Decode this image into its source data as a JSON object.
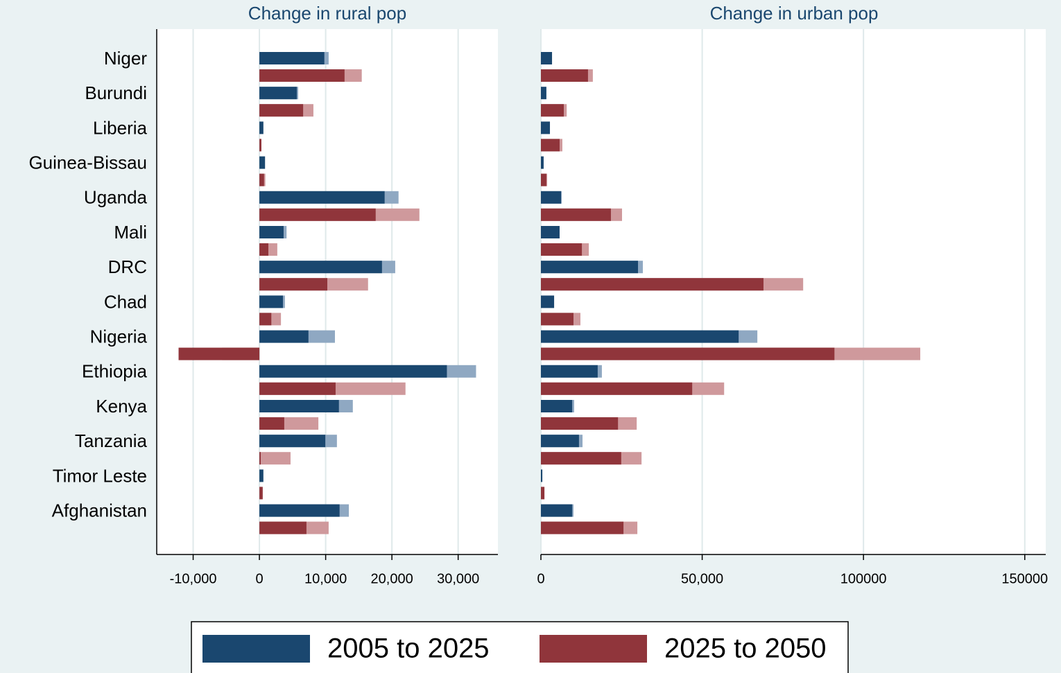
{
  "chart_data": [
    {
      "type": "bar",
      "title": "Change in rural pop",
      "categories": [
        "Niger",
        "Burundi",
        "Liberia",
        "Guinea-Bissau",
        "Uganda",
        "Mali",
        "DRC",
        "Chad",
        "Nigeria",
        "Ethiopia",
        "Kenya",
        "Tanzania",
        "Timor Leste",
        "Afghanistan"
      ],
      "series": [
        {
          "name": "2005 to 2025",
          "color": "#1a476f",
          "light_color": "#8fa8c2",
          "values": [
            9800,
            5650,
            600,
            850,
            18900,
            3650,
            18500,
            3550,
            7400,
            28300,
            12000,
            9950,
            600,
            12100
          ],
          "outer_values": [
            10450,
            5850,
            null,
            null,
            21000,
            4100,
            20500,
            3850,
            11400,
            32700,
            14100,
            11700,
            null,
            13500
          ]
        },
        {
          "name": "2025 to 2050",
          "color": "#90353b",
          "light_color": "#cf999c",
          "values": [
            12850,
            6600,
            300,
            700,
            17550,
            1350,
            10250,
            1800,
            -12200,
            11500,
            3750,
            200,
            500,
            7100
          ],
          "outer_values": [
            15450,
            8150,
            null,
            900,
            24150,
            2700,
            16400,
            3250,
            -5650,
            22050,
            8900,
            4700,
            null,
            10450
          ]
        }
      ],
      "xlim": [
        -15500,
        36000
      ],
      "xticks": [
        {
          "value": -10000,
          "label": "-10,000"
        },
        0,
        {
          "value": 10000,
          "label": "10,000"
        },
        {
          "value": 20000,
          "label": "20,000"
        },
        {
          "value": 30000,
          "label": "30,000"
        }
      ],
      "grid": true
    },
    {
      "type": "bar",
      "title": "Change in urban pop",
      "series": [
        {
          "color": "#1a476f",
          "light_color": "#8fa8c2",
          "values": [
            3450,
            1700,
            2800,
            850,
            6250,
            5800,
            30100,
            4100,
            61300,
            17600,
            9700,
            11800,
            450,
            9700
          ],
          "outer_values": [
            null,
            null,
            null,
            null,
            6450,
            null,
            31600,
            null,
            67100,
            18900,
            10300,
            12900,
            null,
            10100
          ]
        },
        {
          "color": "#90353b",
          "light_color": "#cf999c",
          "values": [
            14600,
            7100,
            5800,
            1700,
            21700,
            12700,
            69000,
            10100,
            91000,
            46900,
            23900,
            24900,
            1100,
            25600
          ],
          "outer_values": [
            16100,
            8000,
            6650,
            1950,
            25150,
            14850,
            81300,
            12250,
            117600,
            56800,
            29700,
            31200,
            null,
            29900
          ]
        }
      ],
      "xlim": [
        0,
        156500
      ],
      "xticks": [
        0,
        {
          "value": 50000,
          "label": "50,000"
        },
        100000,
        150000
      ],
      "grid": true
    }
  ]
}
